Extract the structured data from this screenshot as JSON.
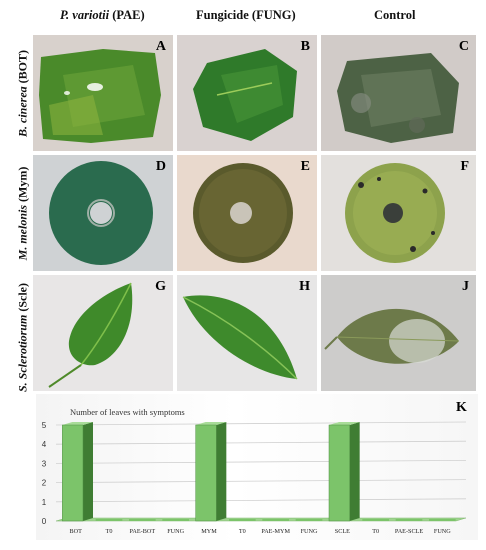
{
  "columns": {
    "paecilomyces": {
      "species": "P. variotii",
      "code": "(PAE)"
    },
    "fungicide": "Fungicide (FUNG)",
    "control": "Control"
  },
  "rows": {
    "botrytis": {
      "species": "B. cinerea",
      "code": "(BOT)"
    },
    "monosporascus": {
      "species": "M. melonis",
      "code": "(Mym)"
    },
    "sclerotinia": {
      "species": "S. Sclerotiorum",
      "code": "(Scle)"
    }
  },
  "panels": {
    "A": "A",
    "B": "B",
    "C": "C",
    "D": "D",
    "E": "E",
    "F": "F",
    "G": "G",
    "H": "H",
    "J": "J",
    "K": "K"
  },
  "colors": {
    "bar_face": "#7cc46a",
    "bar_side": "#3f7d33",
    "bar_top": "#a8dc98",
    "floor": "#9fd48f"
  },
  "chart_data": {
    "type": "bar",
    "title": "Number of leaves  with symptoms",
    "categories": [
      "BOT",
      "T0",
      "PAE-BOT",
      "FUNG",
      "MYM",
      "T0",
      "PAE-MYM",
      "FUNG",
      "SCLE",
      "T0",
      "PAE-SCLE",
      "FUNG"
    ],
    "values": [
      5,
      0,
      0,
      0,
      5,
      0,
      0,
      0,
      5,
      0,
      0,
      0
    ],
    "ylim": [
      0,
      5
    ],
    "yticks": [
      0,
      1,
      2,
      3,
      4,
      5
    ],
    "grid": true,
    "legend": "none"
  }
}
